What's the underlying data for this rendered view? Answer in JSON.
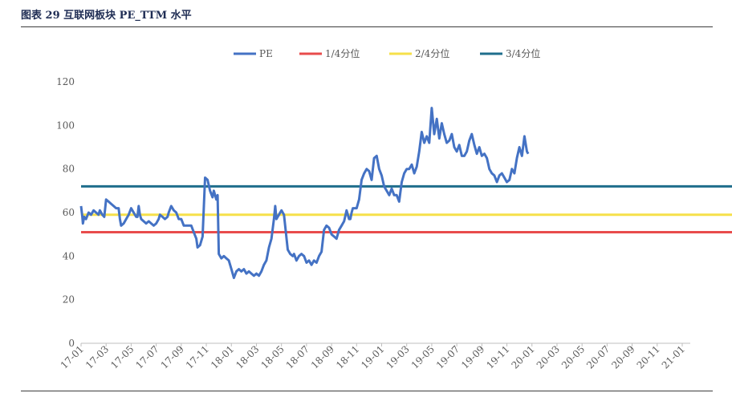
{
  "header": {
    "title": "图表 29   互联网板块 PE_TTM 水平"
  },
  "chart_data": {
    "type": "line",
    "title": "互联网板块 PE_TTM 水平",
    "ylim": [
      0,
      120
    ],
    "yticks": [
      0,
      20,
      40,
      60,
      80,
      100,
      120
    ],
    "x_labels": [
      "17-01",
      "17-03",
      "17-05",
      "17-07",
      "17-09",
      "17-11",
      "18-01",
      "18-03",
      "18-05",
      "18-07",
      "18-09",
      "18-11",
      "19-01",
      "19-03",
      "19-05",
      "19-07",
      "19-09",
      "19-11",
      "20-01",
      "20-03",
      "20-05",
      "20-07",
      "20-09",
      "20-11",
      "21-01"
    ],
    "series": [
      {
        "name": "PE",
        "color": "#4472c4",
        "role": "line",
        "points": [
          [
            0,
            63
          ],
          [
            0.1,
            58
          ],
          [
            0.15,
            55
          ],
          [
            0.25,
            58
          ],
          [
            0.4,
            57
          ],
          [
            0.6,
            60
          ],
          [
            0.8,
            59
          ],
          [
            1.0,
            61
          ],
          [
            1.2,
            60
          ],
          [
            1.4,
            59
          ],
          [
            1.5,
            61
          ],
          [
            1.7,
            59
          ],
          [
            1.85,
            58
          ],
          [
            2.0,
            66
          ],
          [
            2.2,
            65
          ],
          [
            2.4,
            64
          ],
          [
            2.6,
            63
          ],
          [
            2.8,
            62
          ],
          [
            3.0,
            62
          ],
          [
            3.1,
            57
          ],
          [
            3.2,
            54
          ],
          [
            3.4,
            55
          ],
          [
            3.6,
            57
          ],
          [
            3.8,
            59
          ],
          [
            4.0,
            62
          ],
          [
            4.2,
            60
          ],
          [
            4.4,
            58
          ],
          [
            4.5,
            58
          ],
          [
            4.6,
            63
          ],
          [
            4.7,
            59
          ],
          [
            4.8,
            57
          ],
          [
            5.0,
            56
          ],
          [
            5.2,
            55
          ],
          [
            5.4,
            56
          ],
          [
            5.6,
            55
          ],
          [
            5.8,
            54
          ],
          [
            6.0,
            55
          ],
          [
            6.2,
            57
          ],
          [
            6.3,
            59
          ],
          [
            6.5,
            58
          ],
          [
            6.7,
            57
          ],
          [
            6.9,
            58
          ],
          [
            7.0,
            60
          ],
          [
            7.2,
            63
          ],
          [
            7.4,
            61
          ],
          [
            7.6,
            60
          ],
          [
            7.8,
            57
          ],
          [
            8.0,
            57
          ],
          [
            8.2,
            54
          ],
          [
            8.4,
            54
          ],
          [
            8.5,
            54
          ],
          [
            8.8,
            54
          ],
          [
            9.0,
            51
          ],
          [
            9.2,
            48
          ],
          [
            9.3,
            44
          ],
          [
            9.5,
            45
          ],
          [
            9.7,
            49
          ],
          [
            9.9,
            76
          ],
          [
            10.1,
            75
          ],
          [
            10.3,
            70
          ],
          [
            10.5,
            67
          ],
          [
            10.6,
            70
          ],
          [
            10.8,
            66
          ],
          [
            10.9,
            68
          ],
          [
            11.0,
            41
          ],
          [
            11.2,
            39
          ],
          [
            11.4,
            40
          ],
          [
            11.6,
            39
          ],
          [
            11.8,
            38
          ],
          [
            12.0,
            34
          ],
          [
            12.2,
            30
          ],
          [
            12.4,
            33
          ],
          [
            12.6,
            34
          ],
          [
            12.8,
            33
          ],
          [
            13.0,
            34
          ],
          [
            13.2,
            32
          ],
          [
            13.4,
            33
          ],
          [
            13.6,
            32
          ],
          [
            13.8,
            31
          ],
          [
            14.0,
            32
          ],
          [
            14.2,
            31
          ],
          [
            14.4,
            33
          ],
          [
            14.6,
            36
          ],
          [
            14.8,
            38
          ],
          [
            15.0,
            44
          ],
          [
            15.2,
            48
          ],
          [
            15.4,
            57
          ],
          [
            15.5,
            63
          ],
          [
            15.6,
            57
          ],
          [
            15.8,
            59
          ],
          [
            16.0,
            61
          ],
          [
            16.2,
            59
          ],
          [
            16.5,
            43
          ],
          [
            16.7,
            41
          ],
          [
            16.9,
            40
          ],
          [
            17.0,
            41
          ],
          [
            17.2,
            38
          ],
          [
            17.4,
            40
          ],
          [
            17.6,
            41
          ],
          [
            17.8,
            40
          ],
          [
            18.0,
            37
          ],
          [
            18.2,
            38
          ],
          [
            18.4,
            36
          ],
          [
            18.6,
            38
          ],
          [
            18.8,
            37
          ],
          [
            19.0,
            40
          ],
          [
            19.2,
            42
          ],
          [
            19.4,
            52
          ],
          [
            19.6,
            54
          ],
          [
            19.8,
            53
          ],
          [
            20.0,
            50
          ],
          [
            20.2,
            49
          ],
          [
            20.4,
            48
          ],
          [
            20.6,
            52
          ],
          [
            20.8,
            54
          ],
          [
            21.0,
            56
          ],
          [
            21.2,
            61
          ],
          [
            21.4,
            57
          ],
          [
            21.5,
            57
          ],
          [
            21.6,
            60
          ],
          [
            21.7,
            62
          ],
          [
            22.0,
            62
          ],
          [
            22.2,
            66
          ],
          [
            22.4,
            75
          ],
          [
            22.6,
            78
          ],
          [
            22.8,
            80
          ],
          [
            23.0,
            79
          ],
          [
            23.2,
            75
          ],
          [
            23.4,
            85
          ],
          [
            23.6,
            86
          ],
          [
            23.8,
            80
          ],
          [
            24.0,
            77
          ],
          [
            24.2,
            72
          ],
          [
            24.4,
            70
          ],
          [
            24.6,
            68
          ],
          [
            24.8,
            71
          ],
          [
            25.0,
            68
          ],
          [
            25.2,
            68
          ],
          [
            25.4,
            65
          ],
          [
            25.6,
            74
          ],
          [
            25.8,
            78
          ],
          [
            26.0,
            80
          ],
          [
            26.2,
            80
          ],
          [
            26.4,
            82
          ],
          [
            26.6,
            78
          ],
          [
            26.8,
            81
          ],
          [
            27.0,
            88
          ],
          [
            27.2,
            97
          ],
          [
            27.4,
            92
          ],
          [
            27.6,
            95
          ],
          [
            27.8,
            92
          ],
          [
            28.0,
            108
          ],
          [
            28.2,
            96
          ],
          [
            28.4,
            103
          ],
          [
            28.6,
            94
          ],
          [
            28.8,
            101
          ],
          [
            29.0,
            96
          ],
          [
            29.2,
            92
          ],
          [
            29.4,
            93
          ],
          [
            29.6,
            96
          ],
          [
            29.8,
            90
          ],
          [
            30.0,
            88
          ],
          [
            30.2,
            91
          ],
          [
            30.4,
            86
          ],
          [
            30.6,
            86
          ],
          [
            30.8,
            88
          ],
          [
            31.0,
            93
          ],
          [
            31.2,
            96
          ],
          [
            31.4,
            91
          ],
          [
            31.6,
            87
          ],
          [
            31.8,
            90
          ],
          [
            32.0,
            86
          ],
          [
            32.2,
            87
          ],
          [
            32.4,
            85
          ],
          [
            32.6,
            80
          ],
          [
            32.8,
            78
          ],
          [
            33.0,
            77
          ],
          [
            33.2,
            74
          ],
          [
            33.4,
            77
          ],
          [
            33.6,
            78
          ],
          [
            33.8,
            76
          ],
          [
            34.0,
            74
          ],
          [
            34.2,
            75
          ],
          [
            34.4,
            80
          ],
          [
            34.6,
            78
          ],
          [
            34.8,
            85
          ],
          [
            35.0,
            90
          ],
          [
            35.2,
            86
          ],
          [
            35.4,
            95
          ],
          [
            35.6,
            88
          ],
          [
            35.7,
            87
          ]
        ]
      },
      {
        "name": "1/4分位",
        "color": "#e84c4c",
        "role": "constant",
        "value": 51
      },
      {
        "name": "2/4分位",
        "color": "#f6e04a",
        "role": "constant",
        "value": 59
      },
      {
        "name": "3/4分位",
        "color": "#1f6e8c",
        "role": "constant",
        "value": 72
      }
    ],
    "legend_position": "top-center",
    "grid": false
  }
}
